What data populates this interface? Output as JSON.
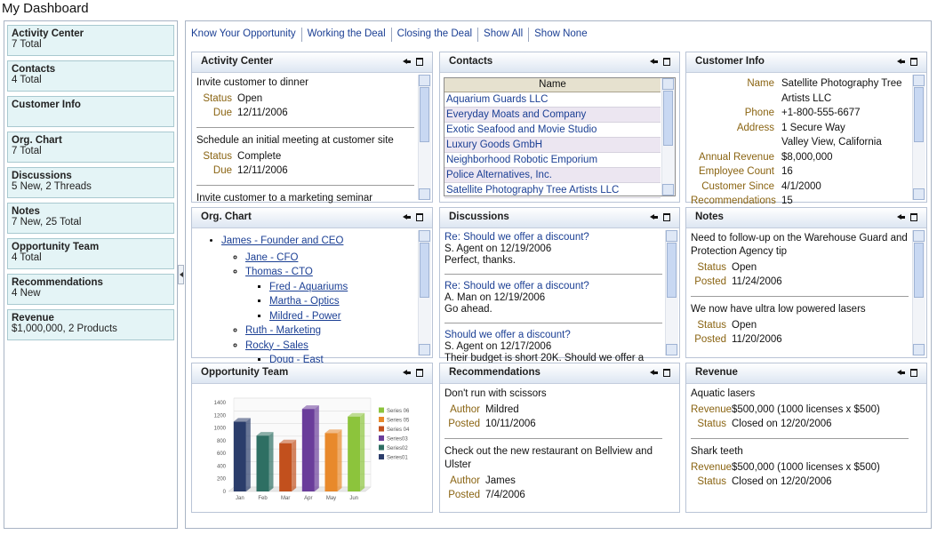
{
  "title": "My Dashboard",
  "sidebar": [
    {
      "title": "Activity Center",
      "subtitle": "7 Total"
    },
    {
      "title": "Contacts",
      "subtitle": "4 Total"
    },
    {
      "title": "Customer Info"
    },
    {
      "title": "Org. Chart",
      "subtitle": "7 Total"
    },
    {
      "title": "Discussions",
      "subtitle": "5 New, 2 Threads"
    },
    {
      "title": "Notes",
      "subtitle": "7 New, 25 Total"
    },
    {
      "title": "Opportunity Team",
      "subtitle": "4 Total"
    },
    {
      "title": "Recommendations",
      "subtitle": "4 New"
    },
    {
      "title": "Revenue",
      "subtitle": "$1,000,000, 2 Products"
    }
  ],
  "links": [
    "Know Your Opportunity",
    "Working the Deal",
    "Closing the Deal",
    "Show All",
    "Show None"
  ],
  "panels": [
    {
      "title": "Activity Center",
      "type": "records",
      "items": [
        {
          "heading": "Invite customer to dinner",
          "fields": [
            {
              "label": "Status",
              "value": "Open"
            },
            {
              "label": "Due",
              "value": "12/11/2006"
            }
          ]
        },
        {
          "heading": "Schedule an initial meeting at customer site",
          "fields": [
            {
              "label": "Status",
              "value": "Complete"
            },
            {
              "label": "Due",
              "value": "12/11/2006"
            }
          ]
        },
        {
          "heading": "Invite customer to a marketing seminar",
          "fields": []
        }
      ]
    },
    {
      "title": "Contacts",
      "type": "table",
      "header": "Name",
      "rows": [
        "Aquarium Guards LLC",
        "Everyday Moats and Company",
        "Exotic Seafood and Movie Studio",
        "Luxury Goods GmbH",
        "Neighborhood Robotic Emporium",
        "Police Alternatives, Inc.",
        "Satellite Photography Tree Artists LLC"
      ]
    },
    {
      "title": "Customer Info",
      "type": "fields",
      "fields": [
        {
          "label": "Name",
          "value": "Satellite Photography Tree Artists LLC"
        },
        {
          "label": "Phone",
          "value": "+1-800-555-6677"
        },
        {
          "label": "Address",
          "value": "1 Secure Way\nValley View, California"
        },
        {
          "label": "Annual Revenue",
          "value": "$8,000,000"
        },
        {
          "label": "Employee Count",
          "value": "16"
        },
        {
          "label": "Customer Since",
          "value": "4/1/2000"
        },
        {
          "label": "Recommendations",
          "value": "15"
        }
      ]
    },
    {
      "title": "Org. Chart",
      "type": "tree",
      "items": [
        {
          "label": "James - Founder and CEO",
          "children": [
            {
              "label": "Jane - CFO"
            },
            {
              "label": "Thomas - CTO",
              "children": [
                {
                  "label": "Fred - Aquariums"
                },
                {
                  "label": "Martha - Optics"
                },
                {
                  "label": "Mildred - Power"
                }
              ]
            },
            {
              "label": "Ruth - Marketing"
            },
            {
              "label": "Rocky - Sales",
              "children": [
                {
                  "label": "Doug - East"
                }
              ]
            }
          ]
        }
      ]
    },
    {
      "title": "Discussions",
      "type": "discussions",
      "items": [
        {
          "subject": "Re: Should we offer a discount?",
          "meta": "S. Agent on 12/19/2006",
          "body": "Perfect, thanks."
        },
        {
          "subject": "Re: Should we offer a discount?",
          "meta": "A. Man on 12/19/2006",
          "body": "Go ahead."
        },
        {
          "subject": "Should we offer a discount?",
          "meta": "S. Agent on 12/17/2006",
          "body": "Their budget is short 20K. Should we offer a"
        }
      ]
    },
    {
      "title": "Notes",
      "type": "records",
      "items": [
        {
          "heading": "Need to follow-up on the Warehouse Guard and Protection Agency tip",
          "fields": [
            {
              "label": "Status",
              "value": "Open"
            },
            {
              "label": "Posted",
              "value": "11/24/2006"
            }
          ]
        },
        {
          "heading": "We now have ultra low powered lasers",
          "fields": [
            {
              "label": "Status",
              "value": "Open"
            },
            {
              "label": "Posted",
              "value": "11/20/2006"
            }
          ]
        }
      ]
    },
    {
      "title": "Opportunity Team",
      "type": "chart",
      "chart": {
        "type": "bar",
        "categories": [
          "Jan",
          "Feb",
          "Mar",
          "Apr",
          "May",
          "Jun"
        ],
        "values": [
          1100,
          880,
          760,
          1300,
          920,
          1180
        ],
        "colors": [
          "#2b3d6b",
          "#2e6f63",
          "#c2501d",
          "#6a3d9a",
          "#e8892b",
          "#8cc43c"
        ],
        "ylim": [
          0,
          1400
        ],
        "yticks": [
          0,
          200,
          400,
          600,
          800,
          1000,
          1200,
          1400
        ],
        "grid": true,
        "legend": [
          {
            "name": "Series 06",
            "color": "#8cc43c"
          },
          {
            "name": "Series 05",
            "color": "#e8892b"
          },
          {
            "name": "Series 04",
            "color": "#c2501d"
          },
          {
            "name": "Series03",
            "color": "#6a3d9a"
          },
          {
            "name": "Series02",
            "color": "#2e6f63"
          },
          {
            "name": "Series01",
            "color": "#2b3d6b"
          }
        ]
      }
    },
    {
      "title": "Recommendations",
      "type": "records",
      "items": [
        {
          "heading": "Don't run with scissors",
          "fields": [
            {
              "label": "Author",
              "value": "Mildred"
            },
            {
              "label": "Posted",
              "value": "10/11/2006"
            }
          ]
        },
        {
          "heading": "Check out the new restaurant on Bellview and Ulster",
          "fields": [
            {
              "label": "Author",
              "value": "James"
            },
            {
              "label": "Posted",
              "value": "7/4/2006"
            }
          ]
        }
      ]
    },
    {
      "title": "Revenue",
      "type": "records",
      "items": [
        {
          "heading": "Aquatic lasers",
          "fields": [
            {
              "label": "Revenue",
              "value": "$500,000 (1000 licenses x $500)"
            },
            {
              "label": "Status",
              "value": "Closed on 12/20/2006"
            }
          ]
        },
        {
          "heading": "Shark teeth",
          "fields": [
            {
              "label": "Revenue",
              "value": "$500,000 (1000 licenses x $500)"
            },
            {
              "label": "Status",
              "value": "Closed on 12/20/2006"
            }
          ]
        }
      ]
    }
  ]
}
